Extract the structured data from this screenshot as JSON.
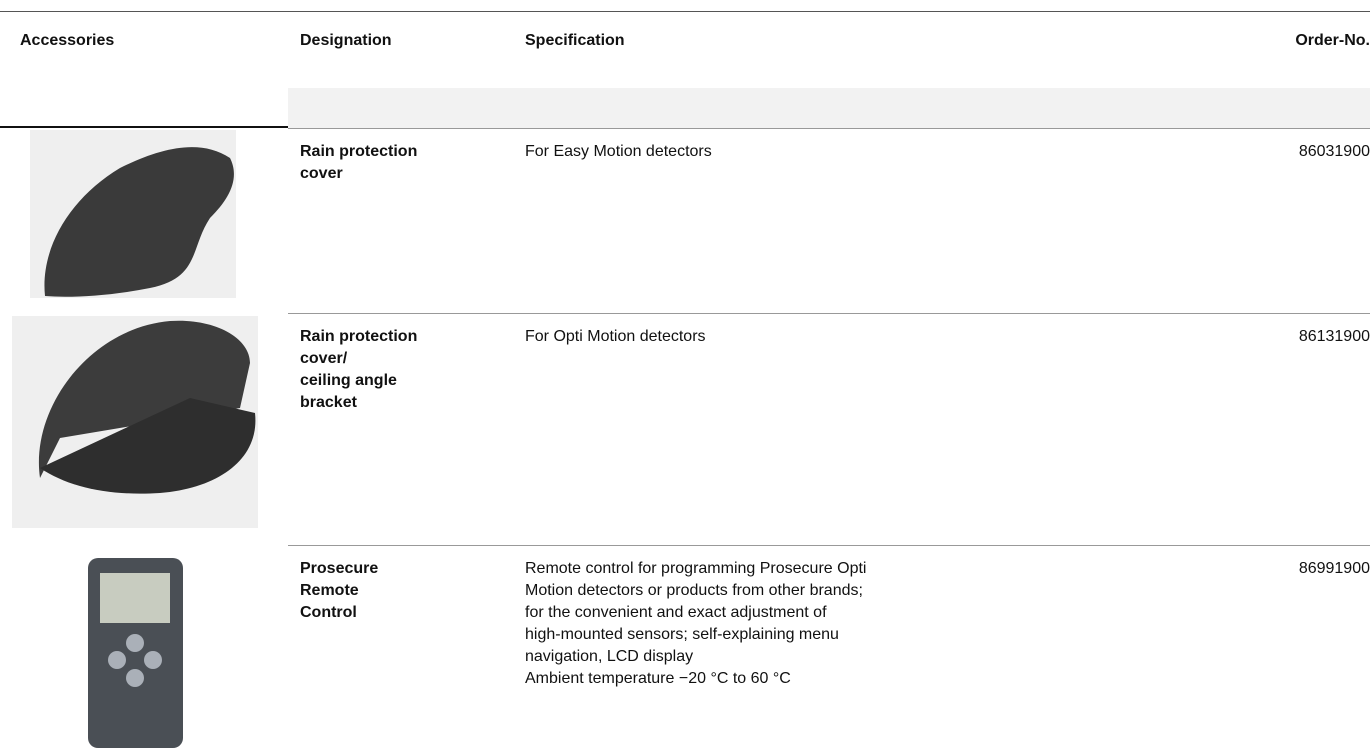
{
  "header": {
    "columns": [
      "Accessories",
      "Designation",
      "Specification",
      "Order-No."
    ]
  },
  "table": {
    "rows": [
      {
        "designation": [
          "Rain protection",
          "cover"
        ],
        "specification": [
          "For Easy Motion detectors"
        ],
        "order_no": "86031900"
      },
      {
        "designation": [
          "Rain protection",
          "cover/",
          "ceiling angle",
          "bracket"
        ],
        "specification": [
          "For Opti Motion detectors"
        ],
        "order_no": "86131900"
      },
      {
        "designation": [
          "Prosecure",
          "Remote",
          "Control"
        ],
        "specification": [
          "Remote control for programming Prosecure Opti",
          "Motion detectors or products from other brands;",
          "for the convenient and exact adjustment of",
          "high-mounted sensors; self-explaining menu",
          "navigation, LCD display",
          "Ambient temperature −20 °C to 60 °C"
        ],
        "order_no": "86991900"
      }
    ]
  }
}
